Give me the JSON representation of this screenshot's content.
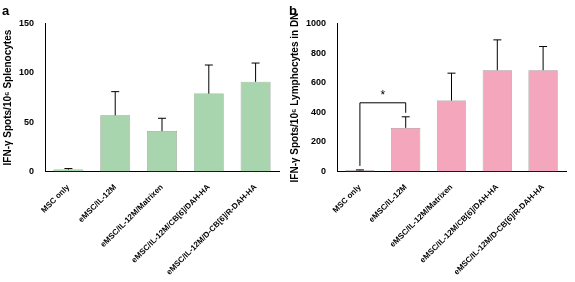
{
  "chart_data": [
    {
      "type": "bar",
      "title": "a",
      "y_label": "IFN-γ Spots/10⁶ Splenocytes",
      "categories": [
        "MSC only",
        "eMSC/IL-12M",
        "eMSC/IL-12M/Matrixen",
        "eMSC/IL-12M/CB[6]/DAH-HA",
        "eMSC/IL-12M/D-CB[6]/R-DAH-HA"
      ],
      "values": [
        2,
        57,
        41,
        79,
        91
      ],
      "errors": [
        1,
        24,
        13,
        29,
        19
      ],
      "color": "#a8d5ad",
      "ylim": [
        0,
        150
      ],
      "yticks": [
        0,
        50,
        100,
        150
      ],
      "grid": false
    },
    {
      "type": "bar",
      "title": "b",
      "y_label": "IFN-γ Spots/10⁶ Lymphocytes in DN",
      "categories": [
        "MSC only",
        "eMSC/IL-12M",
        "eMSC/IL-12M/Matrixen",
        "eMSC/IL-12M/CB[6]/DAH-HA",
        "eMSC/IL-12M/D-CB[6]/R-DAH-HA"
      ],
      "values": [
        8,
        295,
        480,
        685,
        685
      ],
      "errors": [
        3,
        75,
        185,
        205,
        160
      ],
      "color": "#f4a6bd",
      "ylim": [
        0,
        1000
      ],
      "yticks": [
        0,
        200,
        400,
        600,
        800,
        1000
      ],
      "grid": false,
      "annotations": [
        {
          "text": "*",
          "from": "MSC only",
          "to": "eMSC/IL-12M"
        }
      ]
    }
  ]
}
